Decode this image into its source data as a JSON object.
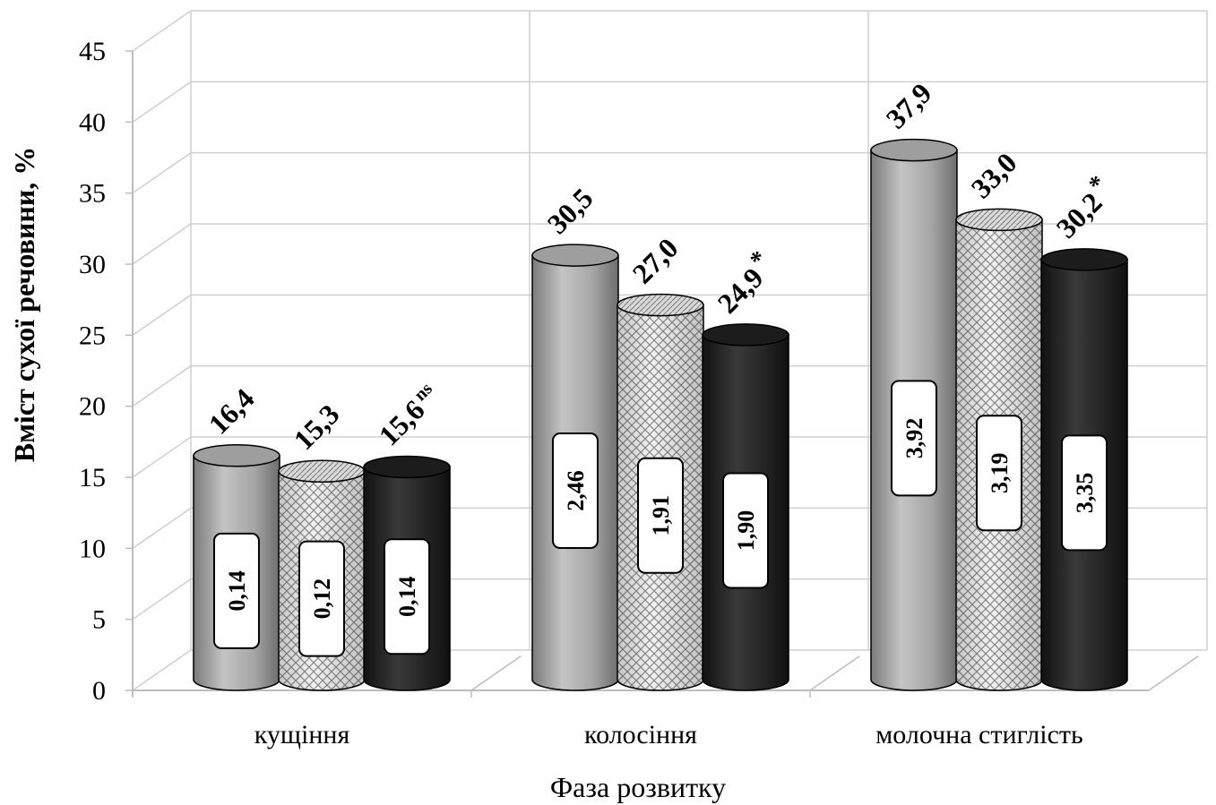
{
  "chart_data": {
    "type": "bar",
    "ylabel": "Вміст сухої речовини, %",
    "xlabel": "Фаза розвитку",
    "ylim": [
      0,
      45
    ],
    "yticks": [
      "0",
      "5",
      "10",
      "15",
      "20",
      "25",
      "30",
      "35",
      "40",
      "45"
    ],
    "categories": [
      "кущіння",
      "колосіння",
      "молочна стиглість"
    ],
    "grid": true,
    "colors": [
      "#a6a6a6",
      "#e6e6e6",
      "#262626"
    ],
    "series": [
      {
        "values": [
          16.4,
          30.5,
          37.9
        ],
        "value_labels": [
          "16,4",
          "30,5",
          "37,9"
        ],
        "marks": [
          "",
          "",
          ""
        ],
        "inner_labels": [
          "0,14",
          "2,46",
          "3,92"
        ]
      },
      {
        "values": [
          15.3,
          27.0,
          33.0
        ],
        "value_labels": [
          "15,3",
          "27,0",
          "33,0"
        ],
        "marks": [
          "",
          "",
          ""
        ],
        "inner_labels": [
          "0,12",
          "1,91",
          "3,19"
        ]
      },
      {
        "values": [
          15.6,
          24.9,
          30.2
        ],
        "value_labels": [
          "15,6",
          "24,9",
          "30,2"
        ],
        "marks": [
          "ns",
          "*",
          "*"
        ],
        "inner_labels": [
          "0,14",
          "1,90",
          "3,35"
        ]
      }
    ]
  }
}
